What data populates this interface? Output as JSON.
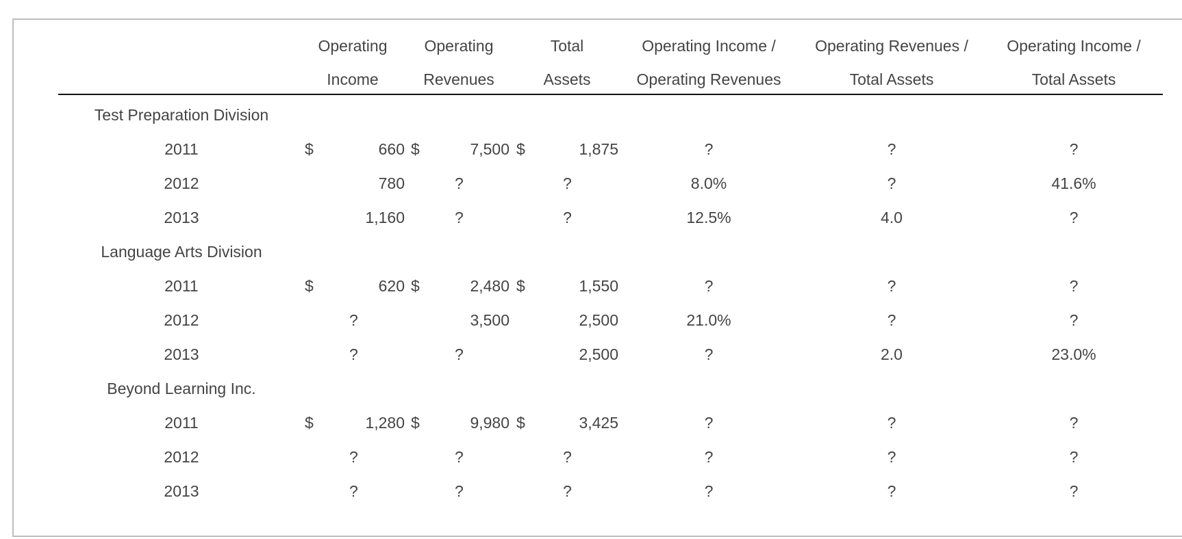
{
  "table": {
    "headers": [
      {
        "line1": "",
        "line2": ""
      },
      {
        "line1": "Operating",
        "line2": "Income"
      },
      {
        "line1": "Operating",
        "line2": "Revenues"
      },
      {
        "line1": "Total",
        "line2": "Assets"
      },
      {
        "line1": "Operating Income /",
        "line2": "Operating Revenues"
      },
      {
        "line1": "Operating Revenues /",
        "line2": "Total Assets"
      },
      {
        "line1": "Operating Income /",
        "line2": "Total Assets"
      }
    ],
    "sections": [
      {
        "label": "Test Preparation Division",
        "rows": [
          {
            "year": "2011",
            "income_sym": "$",
            "income": "660",
            "rev_sym": "$",
            "rev": "7,500",
            "assets_sym": "$",
            "assets": "1,875",
            "oi_or": "?",
            "or_ta": "?",
            "oi_ta": "?"
          },
          {
            "year": "2012",
            "income_sym": "",
            "income": "780",
            "rev_sym": "",
            "rev": "?",
            "assets_sym": "",
            "assets": "?",
            "oi_or": "8.0%",
            "or_ta": "?",
            "oi_ta": "41.6%"
          },
          {
            "year": "2013",
            "income_sym": "",
            "income": "1,160",
            "rev_sym": "",
            "rev": "?",
            "assets_sym": "",
            "assets": "?",
            "oi_or": "12.5%",
            "or_ta": "4.0",
            "oi_ta": "?"
          }
        ]
      },
      {
        "label": "Language Arts Division",
        "rows": [
          {
            "year": "2011",
            "income_sym": "$",
            "income": "620",
            "rev_sym": "$",
            "rev": "2,480",
            "assets_sym": "$",
            "assets": "1,550",
            "oi_or": "?",
            "or_ta": "?",
            "oi_ta": "?"
          },
          {
            "year": "2012",
            "income_sym": "",
            "income": "?",
            "rev_sym": "",
            "rev": "3,500",
            "assets_sym": "",
            "assets": "2,500",
            "oi_or": "21.0%",
            "or_ta": "?",
            "oi_ta": "?"
          },
          {
            "year": "2013",
            "income_sym": "",
            "income": "?",
            "rev_sym": "",
            "rev": "?",
            "assets_sym": "",
            "assets": "2,500",
            "oi_or": "?",
            "or_ta": "2.0",
            "oi_ta": "23.0%"
          }
        ]
      },
      {
        "label": "Beyond Learning Inc.",
        "rows": [
          {
            "year": "2011",
            "income_sym": "$",
            "income": "1,280",
            "rev_sym": "$",
            "rev": "9,980",
            "assets_sym": "$",
            "assets": "3,425",
            "oi_or": "?",
            "or_ta": "?",
            "oi_ta": "?"
          },
          {
            "year": "2012",
            "income_sym": "",
            "income": "?",
            "rev_sym": "",
            "rev": "?",
            "assets_sym": "",
            "assets": "?",
            "oi_or": "?",
            "or_ta": "?",
            "oi_ta": "?"
          },
          {
            "year": "2013",
            "income_sym": "",
            "income": "?",
            "rev_sym": "",
            "rev": "?",
            "assets_sym": "",
            "assets": "?",
            "oi_or": "?",
            "or_ta": "?",
            "oi_ta": "?"
          }
        ]
      }
    ]
  }
}
